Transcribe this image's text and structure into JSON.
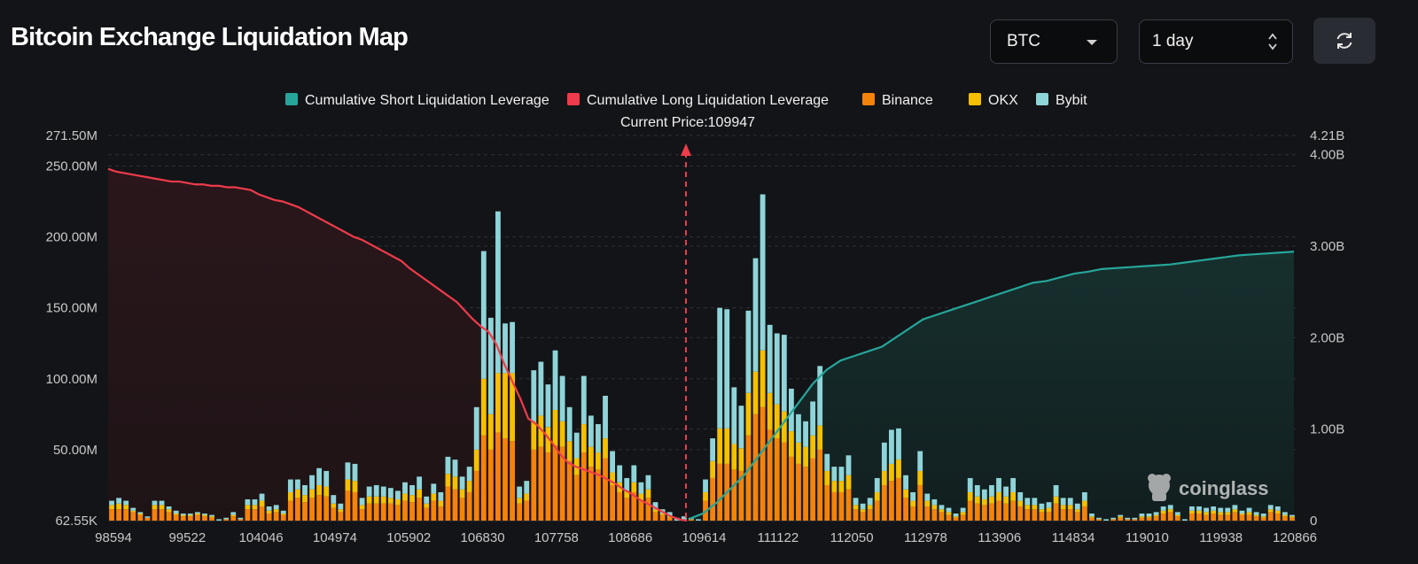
{
  "header": {
    "title": "Bitcoin Exchange Liquidation Map",
    "coin_select": "BTC",
    "range_select": "1 day",
    "refresh_icon": "refresh-icon"
  },
  "chart_data": {
    "type": "bar",
    "title": "Bitcoin Exchange Liquidation Map",
    "current_price_label": "Current Price:109947",
    "current_price": 109947,
    "legend": [
      {
        "name": "Cumulative Short Liquidation Leverage",
        "color": "#26a69a"
      },
      {
        "name": "Cumulative Long Liquidation Leverage",
        "color": "#ef3b4b"
      },
      {
        "name": "Binance",
        "color": "#f5820b"
      },
      {
        "name": "OKX",
        "color": "#f5c000"
      },
      {
        "name": "Bybit",
        "color": "#8fd4d8"
      }
    ],
    "y_left_ticks": [
      "62.55K",
      "50.00M",
      "100.00M",
      "150.00M",
      "200.00M",
      "250.00M",
      "271.50M"
    ],
    "y_left_values": [
      0.06255,
      50,
      100,
      150,
      200,
      250,
      271.5
    ],
    "y_left_range": [
      0,
      271.5
    ],
    "y_left_unit": "M",
    "y_right_ticks": [
      "0",
      "1.00B",
      "2.00B",
      "3.00B",
      "4.00B",
      "4.21B"
    ],
    "y_right_values": [
      0,
      1,
      2,
      3,
      4,
      4.21
    ],
    "y_right_range": [
      0,
      4.21
    ],
    "y_right_unit": "B",
    "x_tick_labels": [
      "98594",
      "99522",
      "104046",
      "104974",
      "105902",
      "106830",
      "107758",
      "108686",
      "109614",
      "111122",
      "112050",
      "112978",
      "113906",
      "114834",
      "119010",
      "119938",
      "120866"
    ],
    "series": [
      {
        "name": "Binance",
        "values": [
          8,
          8,
          8,
          6,
          4,
          2,
          8,
          8,
          6,
          4,
          3,
          3,
          4,
          3,
          2,
          0,
          1,
          3,
          1,
          8,
          8,
          10,
          5,
          6,
          4,
          14,
          16,
          13,
          16,
          18,
          17,
          9,
          6,
          21,
          20,
          8,
          12,
          12,
          12,
          12,
          11,
          14,
          13,
          16,
          9,
          14,
          10,
          24,
          22,
          16,
          20,
          35,
          60,
          50,
          62,
          58,
          56,
          12,
          14,
          50,
          52,
          48,
          53,
          52,
          42,
          32,
          48,
          38,
          36,
          44,
          25,
          20,
          16,
          20,
          14,
          16,
          6,
          4,
          2,
          0,
          0,
          1,
          0,
          14,
          30,
          40,
          40,
          36,
          35,
          60,
          75,
          80,
          64,
          58,
          55,
          45,
          40,
          38,
          44,
          50,
          25,
          20,
          20,
          22,
          8,
          6,
          8,
          14,
          25,
          28,
          30,
          16,
          10,
          25,
          10,
          8,
          6,
          4,
          2,
          4,
          14,
          12,
          11,
          12,
          14,
          12,
          14,
          10,
          8,
          8,
          6,
          6,
          12,
          8,
          8,
          6,
          10,
          2,
          1,
          0,
          1,
          2,
          1,
          1,
          2,
          2,
          3,
          5,
          6,
          3,
          0,
          5,
          5,
          4,
          5,
          4,
          4,
          6,
          4,
          4,
          3,
          2,
          6,
          5,
          3,
          2
        ]
      },
      {
        "name": "OKX",
        "values": [
          3,
          4,
          3,
          1,
          1,
          0,
          3,
          3,
          2,
          1,
          1,
          1,
          1,
          1,
          1,
          0,
          0,
          1,
          0,
          3,
          3,
          4,
          2,
          2,
          1,
          6,
          6,
          5,
          6,
          7,
          7,
          3,
          2,
          8,
          8,
          3,
          5,
          5,
          5,
          4,
          4,
          5,
          5,
          6,
          3,
          5,
          4,
          9,
          9,
          6,
          8,
          15,
          40,
          25,
          42,
          46,
          48,
          4,
          5,
          20,
          22,
          18,
          25,
          18,
          14,
          12,
          20,
          14,
          12,
          14,
          9,
          7,
          5,
          7,
          5,
          6,
          2,
          1,
          1,
          0,
          0,
          0,
          0,
          6,
          12,
          25,
          25,
          18,
          16,
          30,
          30,
          40,
          26,
          24,
          22,
          18,
          15,
          14,
          16,
          17,
          10,
          8,
          8,
          10,
          3,
          2,
          3,
          6,
          10,
          12,
          13,
          6,
          4,
          10,
          4,
          3,
          2,
          2,
          1,
          2,
          6,
          5,
          4,
          5,
          6,
          5,
          6,
          4,
          3,
          3,
          2,
          3,
          5,
          3,
          3,
          2,
          4,
          1,
          0,
          0,
          0,
          1,
          0,
          0,
          1,
          1,
          1,
          2,
          2,
          1,
          0,
          2,
          2,
          2,
          2,
          2,
          2,
          2,
          1,
          2,
          1,
          1,
          2,
          2,
          1,
          1
        ]
      },
      {
        "name": "Bybit",
        "values": [
          3,
          4,
          3,
          2,
          1,
          1,
          3,
          3,
          2,
          2,
          1,
          1,
          1,
          1,
          1,
          1,
          1,
          2,
          1,
          4,
          4,
          5,
          3,
          3,
          2,
          9,
          7,
          7,
          10,
          12,
          11,
          6,
          4,
          12,
          12,
          5,
          7,
          8,
          7,
          7,
          6,
          8,
          7,
          9,
          5,
          7,
          6,
          12,
          12,
          9,
          10,
          30,
          90,
          68,
          114,
          35,
          36,
          8,
          9,
          36,
          38,
          30,
          42,
          32,
          24,
          18,
          34,
          22,
          20,
          30,
          15,
          12,
          9,
          12,
          8,
          10,
          5,
          3,
          3,
          2,
          3,
          1,
          1,
          9,
          16,
          85,
          84,
          40,
          30,
          58,
          80,
          110,
          48,
          50,
          54,
          30,
          20,
          18,
          24,
          42,
          12,
          10,
          10,
          14,
          5,
          4,
          5,
          10,
          20,
          24,
          22,
          10,
          6,
          14,
          5,
          4,
          3,
          3,
          2,
          3,
          10,
          8,
          7,
          8,
          10,
          7,
          10,
          6,
          5,
          5,
          4,
          4,
          8,
          5,
          5,
          4,
          6,
          2,
          1,
          1,
          1,
          1,
          1,
          1,
          2,
          2,
          2,
          3,
          3,
          2,
          1,
          3,
          3,
          3,
          3,
          3,
          3,
          3,
          2,
          3,
          2,
          2,
          3,
          3,
          2,
          1
        ]
      },
      {
        "name": "Cumulative Long Liquidation Leverage",
        "axis": "left",
        "values": [
          248,
          246,
          245,
          244,
          243,
          242,
          241,
          240,
          239,
          239,
          238,
          237,
          237,
          236,
          236,
          235,
          235,
          234,
          233,
          230,
          228,
          226,
          225,
          223,
          221,
          218,
          215,
          212,
          209,
          206,
          203,
          200,
          198,
          195,
          192,
          189,
          186,
          183,
          178,
          174,
          170,
          166,
          162,
          158,
          154,
          148,
          142,
          137,
          133,
          124,
          110,
          98,
          86,
          72,
          68,
          62,
          55,
          47,
          41,
          38,
          36,
          34,
          32,
          29,
          26,
          22,
          19,
          15,
          12,
          9,
          6,
          3,
          1,
          0
        ]
      },
      {
        "name": "Cumulative Short Liquidation Leverage",
        "axis": "right",
        "values": [
          0.02,
          0.08,
          0.2,
          0.35,
          0.5,
          0.7,
          0.9,
          1.1,
          1.3,
          1.5,
          1.65,
          1.75,
          1.8,
          1.85,
          1.9,
          2.0,
          2.1,
          2.2,
          2.25,
          2.3,
          2.35,
          2.4,
          2.45,
          2.5,
          2.55,
          2.6,
          2.62,
          2.66,
          2.7,
          2.72,
          2.75,
          2.76,
          2.77,
          2.78,
          2.79,
          2.8,
          2.82,
          2.84,
          2.86,
          2.88,
          2.9,
          2.91,
          2.92,
          2.93,
          2.94
        ]
      }
    ]
  }
}
